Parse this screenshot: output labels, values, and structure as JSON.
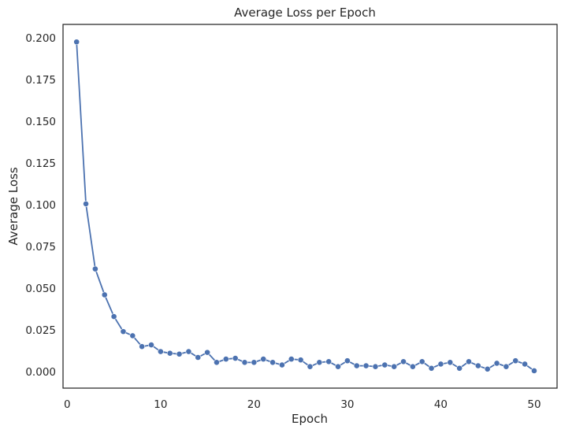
{
  "chart_data": {
    "type": "line",
    "title": "Average Loss per Epoch",
    "xlabel": "Epoch",
    "ylabel": "Average Loss",
    "xlim": [
      -0.45,
      52.45
    ],
    "ylim": [
      -0.0099,
      0.208
    ],
    "xticks": [
      0,
      10,
      20,
      30,
      40,
      50
    ],
    "yticks": [
      0.0,
      0.025,
      0.05,
      0.075,
      0.1,
      0.125,
      0.15,
      0.175,
      0.2
    ],
    "xtick_labels": [
      "0",
      "10",
      "20",
      "30",
      "40",
      "50"
    ],
    "ytick_labels": [
      "0.000",
      "0.025",
      "0.050",
      "0.075",
      "0.100",
      "0.125",
      "0.150",
      "0.175",
      "0.200"
    ],
    "grid": false,
    "markers": true,
    "colors": {
      "line": "#4c72b0",
      "frame": "#262626",
      "text": "#262626"
    },
    "series": [
      {
        "x": [
          1,
          2,
          3,
          4,
          5,
          6,
          7,
          8,
          9,
          10,
          11,
          12,
          13,
          14,
          15,
          16,
          17,
          18,
          19,
          20,
          21,
          22,
          23,
          24,
          25,
          26,
          27,
          28,
          29,
          30,
          31,
          32,
          33,
          34,
          35,
          36,
          37,
          38,
          39,
          40,
          41,
          42,
          43,
          44,
          45,
          46,
          47,
          48,
          49,
          50
        ],
        "values": [
          0.1975,
          0.1005,
          0.0615,
          0.046,
          0.033,
          0.024,
          0.0215,
          0.015,
          0.016,
          0.012,
          0.011,
          0.0105,
          0.012,
          0.0085,
          0.0115,
          0.0055,
          0.0075,
          0.008,
          0.0055,
          0.0055,
          0.0075,
          0.0055,
          0.004,
          0.0075,
          0.007,
          0.003,
          0.0055,
          0.006,
          0.003,
          0.0065,
          0.0035,
          0.0035,
          0.003,
          0.004,
          0.003,
          0.006,
          0.003,
          0.006,
          0.002,
          0.0045,
          0.0055,
          0.002,
          0.006,
          0.0035,
          0.0015,
          0.005,
          0.003,
          0.0065,
          0.0045,
          0.0005
        ]
      }
    ]
  }
}
